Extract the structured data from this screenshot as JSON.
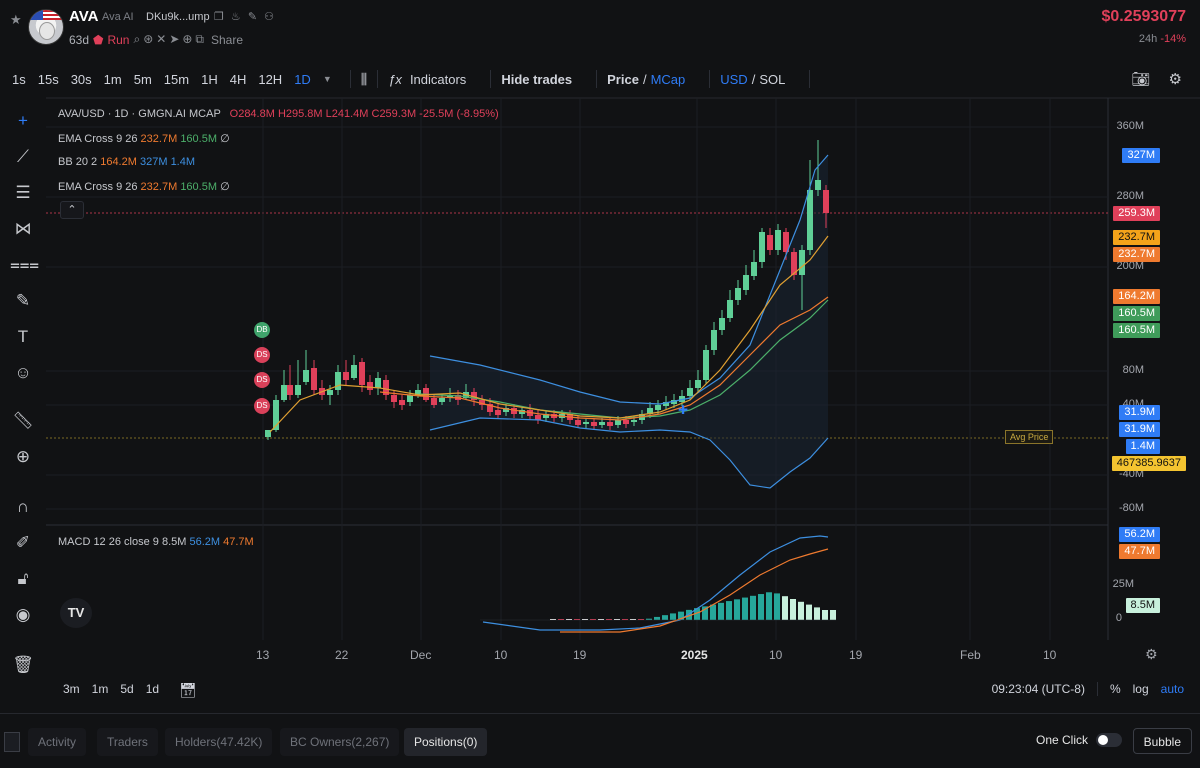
{
  "header": {
    "token_symbol": "AVA",
    "token_name": "Ava AI",
    "address": "DKu9k...ump",
    "age": "63d",
    "run_label": "Run",
    "share_label": "Share",
    "price": "$0.2593077",
    "change_period": "24h",
    "change_value": "-14%"
  },
  "toolbar": {
    "timeframes": [
      "1s",
      "15s",
      "30s",
      "1m",
      "5m",
      "15m",
      "1H",
      "4H",
      "12H",
      "1D"
    ],
    "active_timeframe": "1D",
    "indicators_label": "Indicators",
    "hide_trades_label": "Hide trades",
    "price_label": "Price",
    "slash": "/",
    "mcap_label": "MCap",
    "usd_label": "USD",
    "sol_label": "SOL"
  },
  "legend": {
    "title": "AVA/USD · 1D · GMGN.AI MCAP",
    "ohlc": "O284.8M H295.8M L241.4M C259.3M -25.5M (-8.95%)",
    "ema1_name": "EMA Cross 9 26",
    "ema1_a": "232.7M",
    "ema1_b": "160.5M",
    "bb_name": "BB 20 2",
    "bb_a": "164.2M",
    "bb_b": "327M",
    "bb_c": "1.4M",
    "ema2_name": "EMA Cross 9 26",
    "ema2_a": "232.7M",
    "ema2_b": "160.5M",
    "macd_name": "MACD 12 26 close 9",
    "macd_a": "8.5M",
    "macd_b": "56.2M",
    "macd_c": "47.7M",
    "avg_price_label": "Avg Price",
    "zero_glyph": "∅",
    "collapse_glyph": "⌃"
  },
  "badges": {
    "bb_upper": "327M",
    "close": "259.3M",
    "ema_a1": "232.7M",
    "ema_a2": "232.7M",
    "bb_basis": "164.2M",
    "ema_b1": "160.5M",
    "ema_b2": "160.5M",
    "b1": "31.9M",
    "b2": "31.9M",
    "bb_lower": "1.4M",
    "avg": "467385.9637",
    "macd_signal": "56.2M",
    "macd_line": "47.7M",
    "macd_hist": "8.5M"
  },
  "y_axis": [
    "360M",
    "280M",
    "200M",
    "80M",
    "40M",
    "-40M",
    "-80M"
  ],
  "macd_axis": [
    "25M",
    "0"
  ],
  "x_axis": [
    "13",
    "22",
    "Dec",
    "10",
    "19",
    "2025",
    "10",
    "19",
    "Feb",
    "10"
  ],
  "markers": [
    "DB",
    "DS",
    "DS",
    "DS"
  ],
  "bottom": {
    "ranges": [
      "3m",
      "1m",
      "5d",
      "1d"
    ],
    "time": "09:23:04 (UTC-8)",
    "pct": "%",
    "log": "log",
    "auto": "auto"
  },
  "tabs": [
    "Activity",
    "Traders",
    "Holders(47.42K)",
    "BC Owners(2,267)",
    "Positions(0)"
  ],
  "active_tab": "Positions(0)",
  "one_click_label": "One Click",
  "bubble_label": "Bubble",
  "tv_logo": "TV",
  "colors": {
    "up": "#5fcf97",
    "down": "#e0405a",
    "accent": "#2f7cf6",
    "ema_fast": "#ef7a2f",
    "ema_slow": "#4caf6a",
    "bb": "#3d8fe0"
  }
}
